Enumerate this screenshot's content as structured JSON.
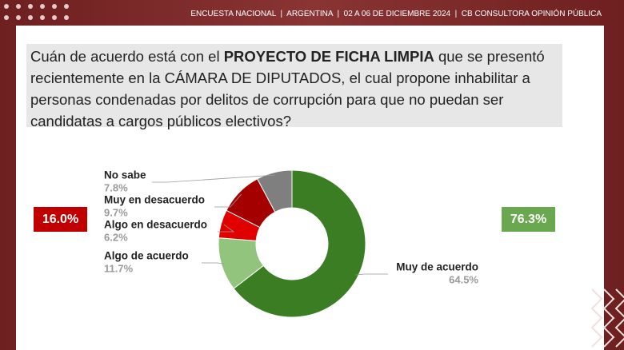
{
  "header": "ENCUESTA NACIONAL  |  ARGENTINA  |  02 A 06 DE DICIEMBRE 2024  |  CB CONSULTORA OPINIÓN PÚBLICA",
  "question": [
    {
      "text": "Cuán de acuerdo está con el ",
      "bold": false
    },
    {
      "text": "PROYECTO DE FICHA LIMPIA",
      "bold": true
    },
    {
      "text": " que se presentó recientemente en la CÁMARA DE DIPUTADOS, el cual propone inhabilitar a personas condenadas por delitos de corrupción para que no puedan ser candidatas a cargos públicos electivos?",
      "bold": false
    }
  ],
  "summary": [
    {
      "value": 16.0,
      "label": "16.0%",
      "color": "#c00000"
    },
    {
      "value": 76.3,
      "label": "76.3%",
      "color": "#6aa84f"
    }
  ],
  "chart_data": {
    "type": "pie",
    "donut": true,
    "categories": [
      "Muy de acuerdo",
      "Algo de acuerdo",
      "Algo en desacuerdo",
      "Muy en desacuerdo",
      "No sabe"
    ],
    "values": [
      64.5,
      11.7,
      6.2,
      9.7,
      7.8
    ],
    "value_labels": [
      "64.5%",
      "11.7%",
      "6.2%",
      "9.7%",
      "7.8%"
    ],
    "colors": [
      "#3a7d22",
      "#93c47d",
      "#e00000",
      "#a50000",
      "#7f7f7f"
    ]
  }
}
